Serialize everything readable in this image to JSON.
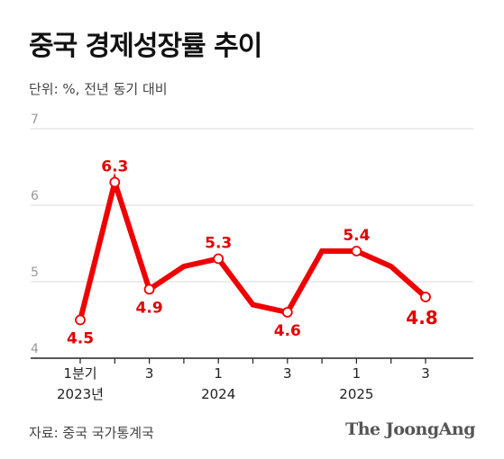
{
  "header": {
    "title": "중국 경제성장률 추이",
    "unit": "단위: %, 전년 동기 대비"
  },
  "footer": {
    "source": "자료: 중국 국가통계국",
    "brand": "The JoongAng"
  },
  "colors": {
    "line": "#ee0000",
    "label": "#e10000",
    "grid": "#d9d9d9",
    "axis": "#222222"
  },
  "chart_data": {
    "type": "line",
    "title": "중국 경제성장률 추이",
    "ylabel": "단위: %, 전년 동기 대비",
    "ylim": [
      4,
      7
    ],
    "yticks": [
      "4",
      "5",
      "6",
      "7"
    ],
    "grid": true,
    "x": [
      "2023 Q1",
      "2023 Q2",
      "2023 Q3",
      "2023 Q4",
      "2024 Q1",
      "2024 Q2",
      "2024 Q3",
      "2024 Q4",
      "2025 Q1",
      "2025 Q2",
      "2025 Q3"
    ],
    "values": [
      4.5,
      6.3,
      4.9,
      5.2,
      5.3,
      4.7,
      4.6,
      5.4,
      5.4,
      5.2,
      4.8
    ],
    "xtick_labels": [
      {
        "index": 0,
        "label": "1분기",
        "year": "2023년"
      },
      {
        "index": 2,
        "label": "3",
        "year": ""
      },
      {
        "index": 4,
        "label": "1",
        "year": "2024"
      },
      {
        "index": 6,
        "label": "3",
        "year": ""
      },
      {
        "index": 8,
        "label": "1",
        "year": "2025"
      },
      {
        "index": 10,
        "label": "3",
        "year": ""
      }
    ],
    "data_labels": [
      {
        "index": 0,
        "text": "4.5"
      },
      {
        "index": 1,
        "text": "6.3"
      },
      {
        "index": 2,
        "text": "4.9"
      },
      {
        "index": 4,
        "text": "5.3"
      },
      {
        "index": 6,
        "text": "4.6"
      },
      {
        "index": 8,
        "text": "5.4"
      },
      {
        "index": 10,
        "text": "4.8"
      }
    ]
  }
}
